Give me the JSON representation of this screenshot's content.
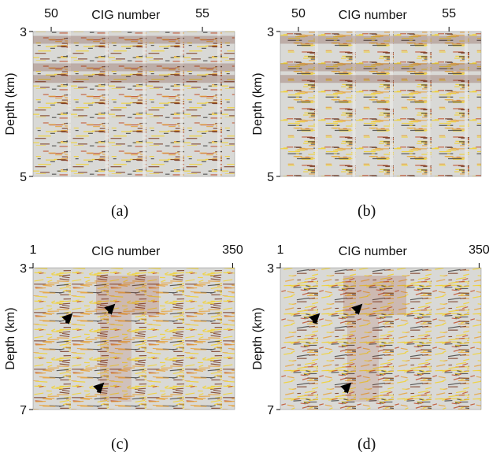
{
  "panels": [
    {
      "x_label": "CIG number",
      "y_label": "Depth (km)",
      "x_ticks": [
        "50",
        "55"
      ],
      "y_ticks": [
        "3",
        "5"
      ],
      "caption": "(a)"
    },
    {
      "x_label": "CIG number",
      "y_label": "Depth (km)",
      "x_ticks": [
        "50",
        "55"
      ],
      "y_ticks": [
        "3",
        "5"
      ],
      "caption": "(b)"
    },
    {
      "x_label": "CIG number",
      "y_label": "Depth (km)",
      "x_ticks": [
        "1",
        "350"
      ],
      "y_ticks": [
        "3",
        "7"
      ],
      "caption": "(c)"
    },
    {
      "x_label": "CIG number",
      "y_label": "Depth (km)",
      "x_ticks": [
        "1",
        "350"
      ],
      "y_ticks": [
        "3",
        "7"
      ],
      "caption": "(d)"
    }
  ]
}
